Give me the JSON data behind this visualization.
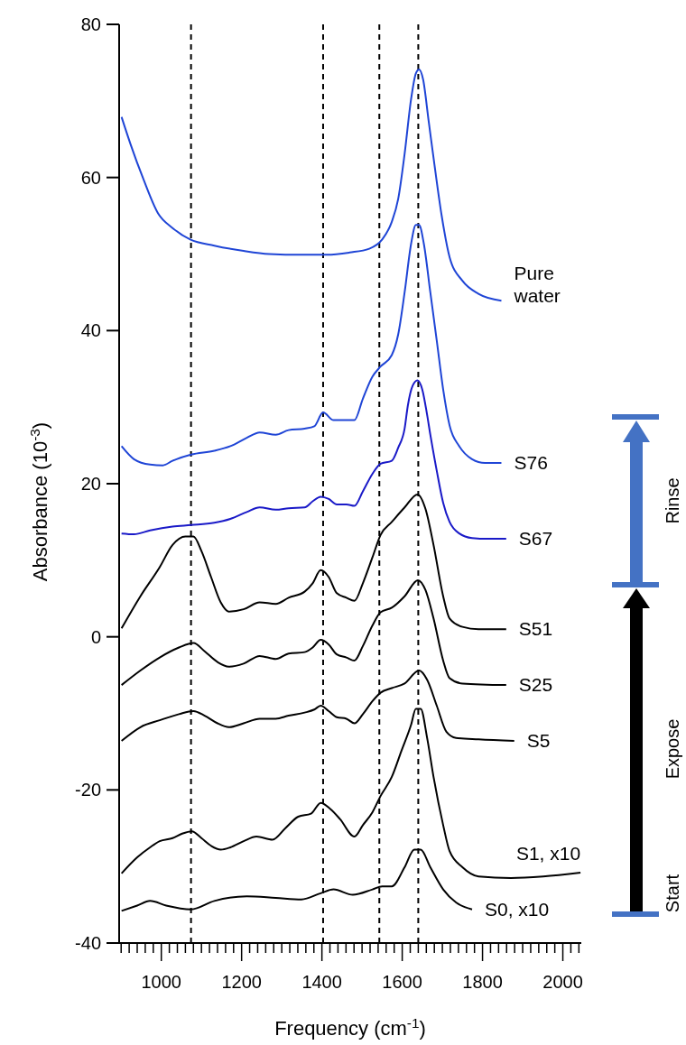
{
  "chart_data": {
    "type": "line",
    "xlabel": "Frequency (cm$^{-1}$)",
    "ylabel": "Absorbance (10$^{-3}$)",
    "xlim": [
      895,
      2046
    ],
    "ylim": [
      -40,
      80
    ],
    "xticks": [
      {
        "value": 900,
        "label": null
      },
      {
        "value": 920,
        "label": null
      },
      {
        "value": 940,
        "label": null
      },
      {
        "value": 960,
        "label": null
      },
      {
        "value": 980,
        "label": null
      },
      1000,
      {
        "value": 1020,
        "label": null
      },
      {
        "value": 1040,
        "label": null
      },
      {
        "value": 1060,
        "label": null
      },
      {
        "value": 1080,
        "label": null
      },
      {
        "value": 1100,
        "label": null
      },
      {
        "value": 1120,
        "label": null
      },
      {
        "value": 1140,
        "label": null
      },
      {
        "value": 1160,
        "label": null
      },
      {
        "value": 1180,
        "label": null
      },
      1200,
      {
        "value": 1220,
        "label": null
      },
      {
        "value": 1240,
        "label": null
      },
      {
        "value": 1260,
        "label": null
      },
      {
        "value": 1280,
        "label": null
      },
      {
        "value": 1300,
        "label": null
      },
      {
        "value": 1320,
        "label": null
      },
      {
        "value": 1340,
        "label": null
      },
      {
        "value": 1360,
        "label": null
      },
      {
        "value": 1380,
        "label": null
      },
      1400,
      {
        "value": 1420,
        "label": null
      },
      {
        "value": 1440,
        "label": null
      },
      {
        "value": 1460,
        "label": null
      },
      {
        "value": 1480,
        "label": null
      },
      {
        "value": 1500,
        "label": null
      },
      {
        "value": 1520,
        "label": null
      },
      {
        "value": 1540,
        "label": null
      },
      {
        "value": 1560,
        "label": null
      },
      {
        "value": 1580,
        "label": null
      },
      1600,
      {
        "value": 1620,
        "label": null
      },
      {
        "value": 1640,
        "label": null
      },
      {
        "value": 1660,
        "label": null
      },
      {
        "value": 1680,
        "label": null
      },
      {
        "value": 1700,
        "label": null
      },
      {
        "value": 1720,
        "label": null
      },
      {
        "value": 1740,
        "label": null
      },
      {
        "value": 1760,
        "label": null
      },
      {
        "value": 1780,
        "label": null
      },
      1800,
      {
        "value": 1820,
        "label": null
      },
      {
        "value": 1840,
        "label": null
      },
      {
        "value": 1860,
        "label": null
      },
      {
        "value": 1880,
        "label": null
      },
      {
        "value": 1900,
        "label": null
      },
      {
        "value": 1920,
        "label": null
      },
      {
        "value": 1940,
        "label": null
      },
      {
        "value": 1960,
        "label": null
      },
      {
        "value": 1980,
        "label": null
      },
      2000,
      {
        "value": 2020,
        "label": null
      },
      {
        "value": 2040,
        "label": null
      }
    ],
    "yticks": [
      -40,
      -20,
      0,
      20,
      40,
      60,
      80
    ],
    "grid": false,
    "ref_lines": [
      {
        "axis": "x",
        "value": 1074,
        "line_style": "dashed",
        "color": "#000000"
      },
      {
        "axis": "x",
        "value": 1403,
        "line_style": "dashed",
        "color": "#000000"
      },
      {
        "axis": "x",
        "value": 1543,
        "line_style": "dashed",
        "color": "#000000"
      },
      {
        "axis": "x",
        "value": 1640,
        "line_style": "dashed",
        "color": "#000000"
      }
    ],
    "annotations": [
      "Rinse",
      "Expose",
      "Start"
    ],
    "series": [
      {
        "name": "Pure water",
        "color": "#1f45d6",
        "x": [
          901,
          923,
          956,
          992,
          1028,
          1072,
          1132,
          1205,
          1269,
          1349,
          1413,
          1469,
          1518,
          1550,
          1574,
          1590,
          1606,
          1622,
          1634,
          1642,
          1652,
          1666,
          1682,
          1698,
          1718,
          1750,
          1790,
          1847
        ],
        "values": [
          67.9,
          64.4,
          59.7,
          55.3,
          53.4,
          51.9,
          51.1,
          50.4,
          50.0,
          49.9,
          49.9,
          50.2,
          50.7,
          51.9,
          54.2,
          57.2,
          63.1,
          70.2,
          73.6,
          74.1,
          72.8,
          67.3,
          61.0,
          55.1,
          49.6,
          46.5,
          44.8,
          43.9
        ]
      },
      {
        "name": "S76",
        "color": "#1f45d6",
        "x": [
          901,
          932,
          972,
          1004,
          1028,
          1074,
          1132,
          1172,
          1213,
          1245,
          1285,
          1317,
          1357,
          1381,
          1403,
          1429,
          1461,
          1481,
          1502,
          1526,
          1546,
          1574,
          1590,
          1606,
          1622,
          1634,
          1642,
          1654,
          1670,
          1686,
          1702,
          1718,
          1742,
          1774,
          1806,
          1847
        ],
        "values": [
          24.9,
          23.2,
          22.5,
          22.4,
          23.0,
          23.8,
          24.3,
          24.9,
          26.0,
          26.7,
          26.4,
          27.0,
          27.2,
          27.5,
          29.3,
          28.3,
          28.3,
          28.3,
          31.1,
          34.0,
          35.3,
          36.8,
          39.5,
          45.0,
          51.3,
          53.8,
          53.8,
          51.3,
          45.0,
          38.7,
          32.3,
          27.6,
          24.9,
          23.2,
          22.7,
          22.7
        ]
      },
      {
        "name": "S67",
        "color": "#1a1ac8",
        "x": [
          901,
          932,
          972,
          1028,
          1074,
          1132,
          1172,
          1213,
          1245,
          1285,
          1317,
          1357,
          1377,
          1397,
          1417,
          1437,
          1461,
          1481,
          1502,
          1526,
          1546,
          1574,
          1590,
          1606,
          1614,
          1626,
          1638,
          1650,
          1662,
          1670,
          1686,
          1702,
          1718,
          1742,
          1774,
          1814,
          1859
        ],
        "values": [
          13.5,
          13.4,
          13.9,
          14.4,
          14.6,
          14.9,
          15.4,
          16.3,
          16.9,
          16.6,
          16.8,
          16.9,
          17.7,
          18.3,
          18.0,
          17.3,
          17.3,
          17.1,
          19.0,
          21.3,
          22.6,
          23.0,
          24.7,
          27.2,
          30.2,
          32.8,
          33.5,
          32.3,
          29.0,
          26.4,
          21.7,
          17.5,
          15.0,
          13.5,
          12.9,
          12.8,
          12.8
        ]
      },
      {
        "name": "S51",
        "color": "#000000",
        "x": [
          901,
          948,
          996,
          1028,
          1060,
          1080,
          1100,
          1124,
          1148,
          1168,
          1205,
          1245,
          1285,
          1317,
          1357,
          1377,
          1397,
          1417,
          1437,
          1461,
          1481,
          1502,
          1526,
          1546,
          1574,
          1606,
          1638,
          1658,
          1678,
          1702,
          1718,
          1750,
          1790,
          1859
        ],
        "values": [
          1.1,
          5.3,
          9.1,
          12.0,
          13.1,
          13.1,
          11.2,
          7.8,
          4.5,
          3.3,
          3.6,
          4.5,
          4.3,
          5.1,
          5.9,
          7.0,
          8.7,
          7.8,
          5.7,
          5.1,
          4.7,
          7.0,
          10.4,
          13.3,
          15.0,
          16.9,
          18.6,
          16.7,
          12.0,
          5.3,
          2.4,
          1.3,
          1.0,
          1.0
        ]
      },
      {
        "name": "S25",
        "color": "#000000",
        "x": [
          901,
          948,
          996,
          1044,
          1080,
          1108,
          1140,
          1168,
          1205,
          1245,
          1285,
          1317,
          1357,
          1377,
          1397,
          1417,
          1437,
          1461,
          1481,
          1502,
          1526,
          1546,
          1574,
          1606,
          1639,
          1658,
          1678,
          1702,
          1718,
          1750,
          1859
        ],
        "values": [
          -6.3,
          -4.4,
          -2.7,
          -1.4,
          -0.8,
          -1.9,
          -3.3,
          -3.9,
          -3.5,
          -2.5,
          -2.9,
          -2.2,
          -2.0,
          -1.4,
          -0.4,
          -1.0,
          -2.3,
          -2.7,
          -3.1,
          -1.2,
          1.5,
          3.2,
          3.8,
          5.3,
          7.4,
          6.1,
          2.4,
          -3.1,
          -5.4,
          -6.1,
          -6.3
        ]
      },
      {
        "name": "S5",
        "color": "#000000",
        "x": [
          901,
          948,
          996,
          1044,
          1080,
          1108,
          1140,
          1168,
          1205,
          1245,
          1285,
          1317,
          1357,
          1381,
          1397,
          1417,
          1437,
          1461,
          1481,
          1502,
          1526,
          1546,
          1574,
          1606,
          1642,
          1662,
          1686,
          1710,
          1734,
          1790,
          1879
        ],
        "values": [
          -13.6,
          -11.8,
          -10.9,
          -10.1,
          -9.7,
          -10.3,
          -11.3,
          -11.8,
          -11.3,
          -10.7,
          -10.7,
          -10.3,
          -9.9,
          -9.5,
          -9.0,
          -9.7,
          -10.5,
          -10.7,
          -11.3,
          -10.1,
          -8.4,
          -7.3,
          -6.7,
          -6.1,
          -4.4,
          -5.6,
          -9.0,
          -12.4,
          -13.2,
          -13.4,
          -13.6
        ]
      },
      {
        "name": "S1, x10",
        "color": "#000000",
        "x": [
          901,
          940,
          972,
          996,
          1028,
          1052,
          1076,
          1100,
          1124,
          1148,
          1172,
          1205,
          1237,
          1277,
          1309,
          1341,
          1373,
          1397,
          1421,
          1445,
          1481,
          1502,
          1526,
          1546,
          1574,
          1598,
          1622,
          1634,
          1646,
          1662,
          1678,
          1702,
          1718,
          1750,
          1790,
          1871,
          1951,
          2044
        ],
        "values": [
          -30.9,
          -28.8,
          -27.5,
          -26.7,
          -26.3,
          -25.7,
          -25.4,
          -26.3,
          -27.3,
          -27.8,
          -27.5,
          -26.7,
          -26.1,
          -26.5,
          -25.0,
          -23.5,
          -23.1,
          -21.7,
          -22.5,
          -23.8,
          -26.1,
          -24.6,
          -22.9,
          -20.8,
          -18.3,
          -14.9,
          -11.5,
          -9.4,
          -9.4,
          -13.2,
          -18.3,
          -24.6,
          -28.0,
          -30.1,
          -31.3,
          -31.5,
          -31.3,
          -30.8
        ]
      },
      {
        "name": "S0, x10",
        "color": "#000000",
        "x": [
          901,
          940,
          972,
          1012,
          1074,
          1132,
          1213,
          1285,
          1349,
          1397,
          1429,
          1477,
          1526,
          1550,
          1574,
          1606,
          1630,
          1646,
          1670,
          1702,
          1734,
          1774
        ],
        "values": [
          -35.8,
          -35.1,
          -34.5,
          -35.1,
          -35.6,
          -34.5,
          -33.9,
          -34.1,
          -34.3,
          -33.5,
          -33.0,
          -33.7,
          -33.0,
          -32.6,
          -32.6,
          -30.1,
          -27.8,
          -27.8,
          -30.1,
          -33.0,
          -34.7,
          -35.6
        ]
      }
    ]
  }
}
